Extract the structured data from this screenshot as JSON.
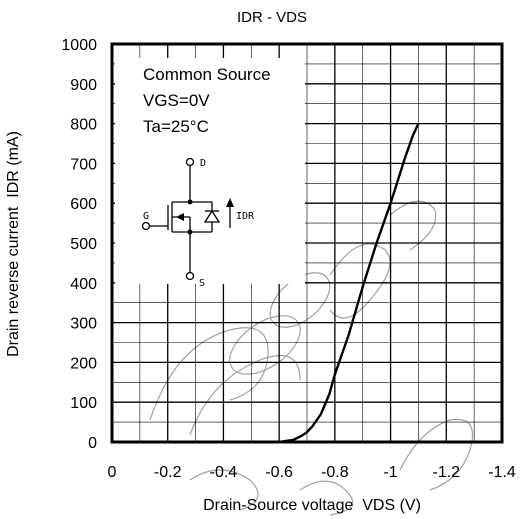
{
  "chart_data": {
    "type": "line",
    "title": "IDR - VDS",
    "xlabel": "Drain-Source voltage  VDS (V)",
    "ylabel": "Drain reverse current  IDR (mA)",
    "xlim": [
      0,
      -1.4
    ],
    "ylim": [
      0,
      1000
    ],
    "x_ticks": [
      "0",
      "-0.2",
      "-0.4",
      "-0.6",
      "-0.8",
      "-1",
      "-1.2",
      "-1.4"
    ],
    "y_ticks": [
      "0",
      "100",
      "200",
      "300",
      "400",
      "500",
      "600",
      "700",
      "800",
      "900",
      "1000"
    ],
    "grid": true,
    "conditions": [
      "Common Source",
      "VGS=0V",
      "Ta=25°C"
    ],
    "schematic_labels": {
      "drain": "D",
      "gate": "G",
      "source": "S",
      "current": "IDR"
    },
    "series": [
      {
        "x": [
          -0.6,
          -0.65,
          -0.68,
          -0.7,
          -0.72,
          -0.75,
          -0.78,
          -0.8,
          -0.85,
          -0.9,
          -0.95,
          -1.0,
          -1.05,
          -1.08,
          -1.1
        ],
        "y": [
          0,
          5,
          15,
          25,
          40,
          70,
          120,
          170,
          270,
          390,
          500,
          600,
          710,
          770,
          800
        ]
      }
    ],
    "watermark": "Recommended",
    "colors": {
      "line": "#000000",
      "grid": "#000000",
      "background": "#ffffff"
    }
  }
}
